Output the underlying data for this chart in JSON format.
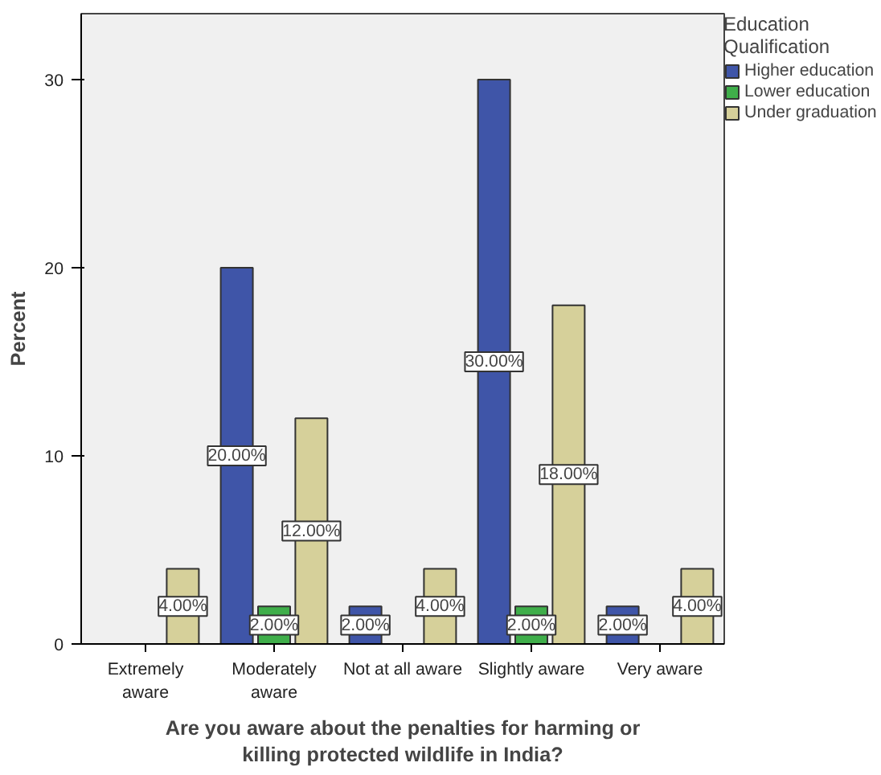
{
  "chart_data": {
    "type": "bar",
    "xlabel": "Are you aware about the penalties for harming or killing protected wildlife in India?",
    "ylabel": "Percent",
    "legend_title": "Education Qualification",
    "categories": [
      "Extremely\naware",
      "Moderately\naware",
      "Not at all aware",
      "Slightly aware",
      "Very aware"
    ],
    "series": [
      {
        "name": "Higher education",
        "color": "#3f55a8",
        "values": [
          null,
          20,
          2,
          30,
          2
        ],
        "value_labels": [
          null,
          "20.00%",
          "2.00%",
          "30.00%",
          "2.00%"
        ]
      },
      {
        "name": "Lower education",
        "color": "#3fae4a",
        "values": [
          null,
          2,
          null,
          2,
          null
        ],
        "value_labels": [
          null,
          "2.00%",
          null,
          "2.00%",
          null
        ]
      },
      {
        "name": "Under graduation",
        "color": "#d6d09a",
        "values": [
          4,
          12,
          4,
          18,
          4
        ],
        "value_labels": [
          "4.00%",
          "12.00%",
          "4.00%",
          "18.00%",
          "4.00%"
        ]
      }
    ],
    "ylim": [
      0,
      33.5
    ],
    "yticks": [
      0,
      10,
      20,
      30
    ],
    "legend": "right"
  }
}
